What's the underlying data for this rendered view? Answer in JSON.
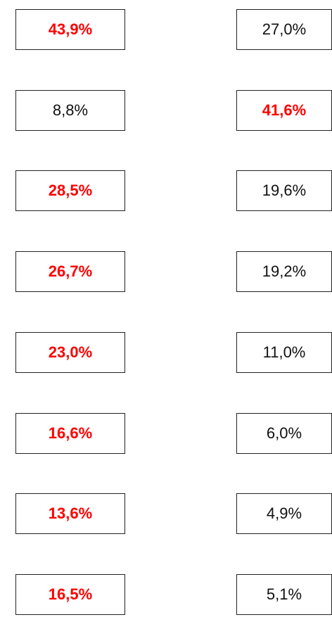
{
  "rows": [
    {
      "left": {
        "text": "43,9%",
        "highlight": true
      },
      "right": {
        "text": "27,0%",
        "highlight": false
      }
    },
    {
      "left": {
        "text": "8,8%",
        "highlight": false
      },
      "right": {
        "text": "41,6%",
        "highlight": true
      }
    },
    {
      "left": {
        "text": "28,5%",
        "highlight": true
      },
      "right": {
        "text": "19,6%",
        "highlight": false
      }
    },
    {
      "left": {
        "text": "26,7%",
        "highlight": true
      },
      "right": {
        "text": "19,2%",
        "highlight": false
      }
    },
    {
      "left": {
        "text": "23,0%",
        "highlight": true
      },
      "right": {
        "text": "11,0%",
        "highlight": false
      }
    },
    {
      "left": {
        "text": "16,6%",
        "highlight": true
      },
      "right": {
        "text": "6,0%",
        "highlight": false
      }
    },
    {
      "left": {
        "text": "13,6%",
        "highlight": true
      },
      "right": {
        "text": "4,9%",
        "highlight": false
      }
    },
    {
      "left": {
        "text": "16,5%",
        "highlight": true
      },
      "right": {
        "text": "5,1%",
        "highlight": false
      }
    }
  ]
}
